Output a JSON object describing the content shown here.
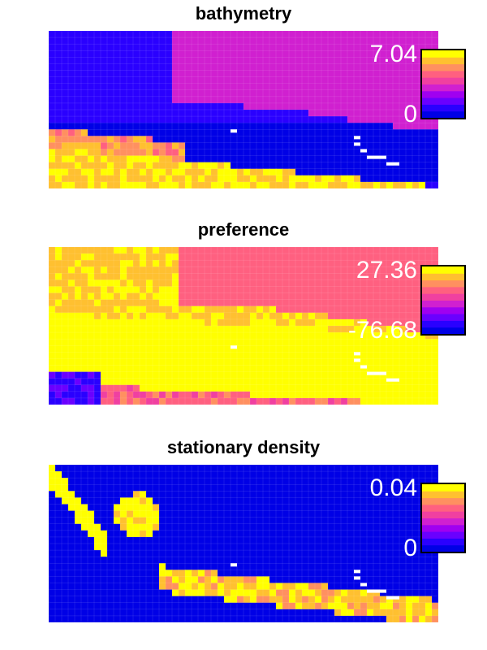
{
  "chart_data": [
    {
      "type": "heatmap",
      "title": "bathymetry",
      "colorbar": {
        "max_label": "7.04",
        "min_label": "0",
        "max": 7.04,
        "min": 0
      },
      "grid": true,
      "legend": "right (colorbar)",
      "pattern": "bathymetry"
    },
    {
      "type": "heatmap",
      "title": "preference",
      "colorbar": {
        "max_label": "27.36",
        "min_label": "-76.68",
        "max": 27.36,
        "min": -76.68
      },
      "grid": true,
      "legend": "right (colorbar)",
      "pattern": "preference"
    },
    {
      "type": "heatmap",
      "title": "stationary density",
      "colorbar": {
        "max_label": "0.04",
        "min_label": "0",
        "max": 0.04,
        "min": 0
      },
      "grid": true,
      "legend": "right (colorbar)",
      "pattern": "density"
    }
  ],
  "colormap": [
    "#0000e6",
    "#2a00ff",
    "#6a00ff",
    "#a000f0",
    "#d020d0",
    "#f040a0",
    "#ff6080",
    "#ff9060",
    "#ffc030",
    "#ffff00"
  ]
}
